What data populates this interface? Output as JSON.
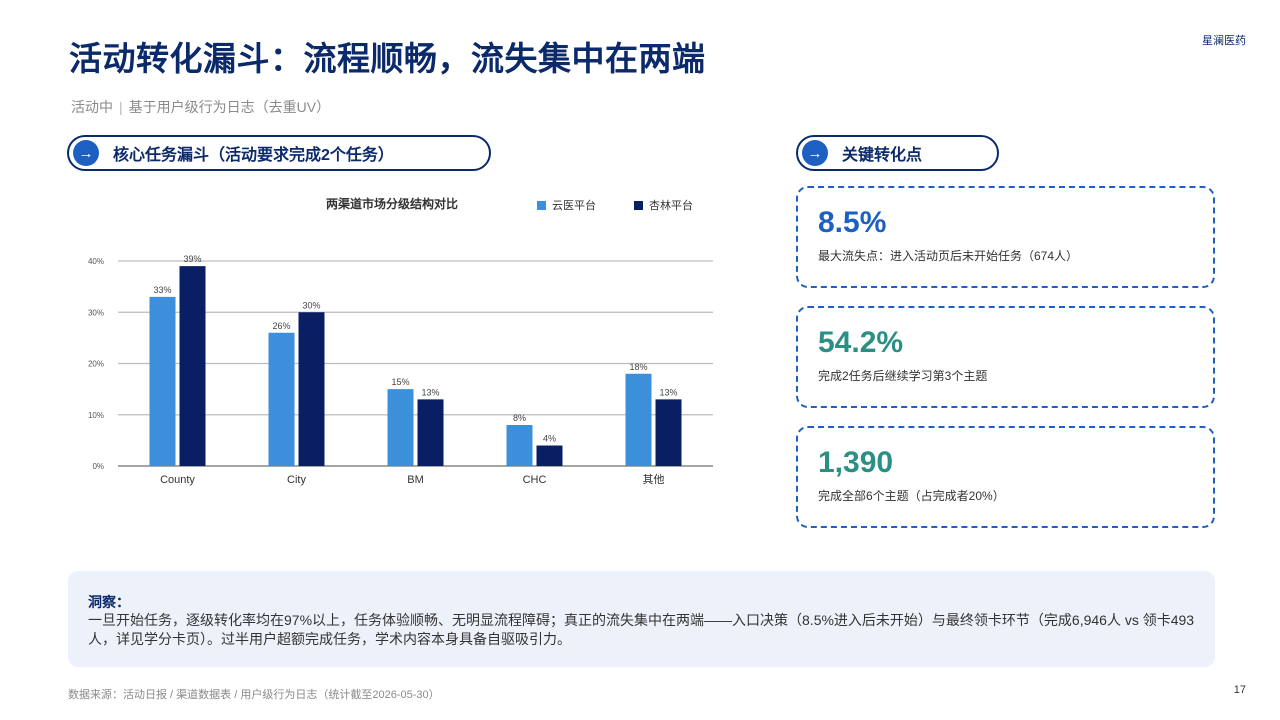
{
  "header": {
    "title": "活动转化漏斗：流程顺畅，流失集中在两端",
    "brand": "星澜医药",
    "subtitle_left": "活动中",
    "subtitle_sep": "|",
    "subtitle_right": "基于用户级行为日志（去重UV）"
  },
  "left_section": {
    "arrow_icon": "→",
    "label": "核心任务漏斗（活动要求完成2个任务）"
  },
  "right_section": {
    "arrow_icon": "→",
    "label": "关键转化点"
  },
  "colors": {
    "navy": "#0b2a6b",
    "series_light": "#3b8fdb",
    "series_dark": "#0a1f63",
    "teal": "#2a8f85",
    "accent_blue": "#1e5fc2"
  },
  "chart_data": {
    "type": "bar",
    "title": "两渠道市场分级结构对比",
    "categories": [
      "County",
      "City",
      "BM",
      "CHC",
      "其他"
    ],
    "series": [
      {
        "name": "云医平台",
        "values": [
          33,
          26,
          15,
          8,
          18
        ],
        "color": "#3b8fdb"
      },
      {
        "name": "杏林平台",
        "values": [
          39,
          30,
          13,
          4,
          13
        ],
        "color": "#0a1f63"
      }
    ],
    "value_suffix": "%",
    "yticks": [
      "0%",
      "10%",
      "20%",
      "30%",
      "40%"
    ],
    "ylim": [
      0,
      40
    ],
    "grid": true,
    "legend_position": "top-right"
  },
  "cards": [
    {
      "value": "8.5%",
      "desc": "最大流失点：进入活动页后未开始任务（674人）",
      "color": "#1e5fc2"
    },
    {
      "value": "54.2%",
      "desc": "完成2任务后继续学习第3个主题",
      "color": "#2a8f85"
    },
    {
      "value": "1,390",
      "desc": "完成全部6个主题（占完成者20%）",
      "color": "#2a8f85"
    }
  ],
  "insight": {
    "head": "洞察：",
    "body": "一旦开始任务，逐级转化率均在97%以上，任务体验顺畅、无明显流程障碍；真正的流失集中在两端——入口决策（8.5%进入后未开始）与最终领卡环节（完成6,946人 vs 领卡493人，详见学分卡页）。过半用户超额完成任务，学术内容本身具备自驱吸引力。"
  },
  "footer": {
    "source": "数据来源：活动日报 / 渠道数据表 / 用户级行为日志（统计截至2026-05-30）",
    "page": "17"
  }
}
